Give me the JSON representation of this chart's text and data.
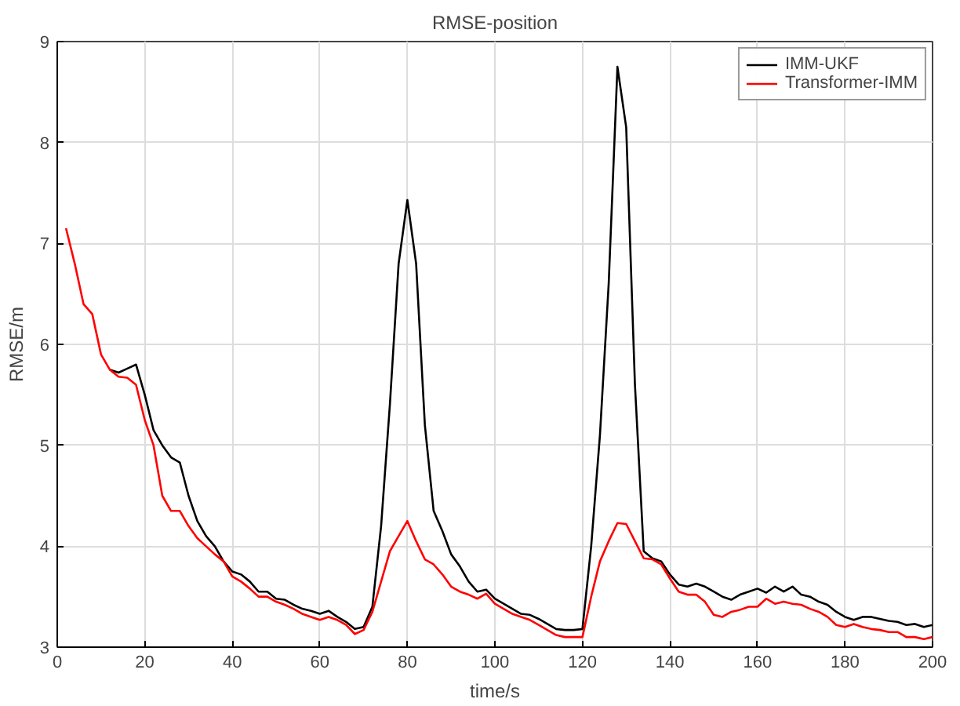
{
  "chart_data": {
    "type": "line",
    "title": "RMSE-position",
    "xlabel": "time/s",
    "ylabel": "RMSE/m",
    "x": [
      2,
      4,
      6,
      8,
      10,
      12,
      14,
      16,
      18,
      20,
      22,
      24,
      26,
      28,
      30,
      32,
      34,
      36,
      38,
      40,
      42,
      44,
      46,
      48,
      50,
      52,
      54,
      56,
      58,
      60,
      62,
      64,
      66,
      68,
      70,
      72,
      74,
      76,
      78,
      80,
      82,
      84,
      86,
      88,
      90,
      92,
      94,
      96,
      98,
      100,
      102,
      104,
      106,
      108,
      110,
      112,
      114,
      116,
      118,
      120,
      122,
      124,
      126,
      128,
      130,
      132,
      134,
      136,
      138,
      140,
      142,
      144,
      146,
      148,
      150,
      152,
      154,
      156,
      158,
      160,
      162,
      164,
      166,
      168,
      170,
      172,
      174,
      176,
      178,
      180,
      182,
      184,
      186,
      188,
      190,
      192,
      194,
      196,
      198,
      200
    ],
    "series": [
      {
        "name": "IMM-UKF",
        "color": "#000000",
        "values": [
          null,
          null,
          null,
          null,
          null,
          5.75,
          5.72,
          5.76,
          5.8,
          5.5,
          5.15,
          5.0,
          4.88,
          4.83,
          4.5,
          4.25,
          4.1,
          4.0,
          3.85,
          3.75,
          3.72,
          3.65,
          3.55,
          3.55,
          3.48,
          3.47,
          3.42,
          3.38,
          3.36,
          3.33,
          3.36,
          3.3,
          3.25,
          3.18,
          3.2,
          3.4,
          4.2,
          5.4,
          6.8,
          7.43,
          6.8,
          5.2,
          4.35,
          4.15,
          3.92,
          3.8,
          3.65,
          3.55,
          3.57,
          3.48,
          3.43,
          3.38,
          3.33,
          3.32,
          3.28,
          3.23,
          3.18,
          3.17,
          3.17,
          3.18,
          4.0,
          5.1,
          6.6,
          8.75,
          8.15,
          5.6,
          3.95,
          3.88,
          3.85,
          3.72,
          3.62,
          3.6,
          3.63,
          3.6,
          3.55,
          3.5,
          3.47,
          3.52,
          3.55,
          3.58,
          3.54,
          3.6,
          3.55,
          3.6,
          3.52,
          3.5,
          3.45,
          3.42,
          3.35,
          3.3,
          3.27,
          3.3,
          3.3,
          3.28,
          3.26,
          3.25,
          3.22,
          3.23,
          3.2,
          3.22
        ]
      },
      {
        "name": "Transformer-IMM",
        "color": "#ff0000",
        "values": [
          7.15,
          6.8,
          6.4,
          6.3,
          5.9,
          5.75,
          5.68,
          5.67,
          5.6,
          5.25,
          5.0,
          4.5,
          4.35,
          4.35,
          4.2,
          4.08,
          4.0,
          3.92,
          3.85,
          3.7,
          3.65,
          3.58,
          3.5,
          3.5,
          3.45,
          3.42,
          3.38,
          3.33,
          3.3,
          3.27,
          3.3,
          3.27,
          3.22,
          3.13,
          3.17,
          3.35,
          3.65,
          3.95,
          4.1,
          4.25,
          4.05,
          3.87,
          3.82,
          3.72,
          3.6,
          3.55,
          3.52,
          3.48,
          3.53,
          3.43,
          3.38,
          3.33,
          3.3,
          3.27,
          3.22,
          3.17,
          3.12,
          3.1,
          3.1,
          3.1,
          3.5,
          3.85,
          4.05,
          4.23,
          4.22,
          4.05,
          3.88,
          3.87,
          3.82,
          3.68,
          3.55,
          3.52,
          3.52,
          3.45,
          3.32,
          3.3,
          3.35,
          3.37,
          3.4,
          3.4,
          3.48,
          3.43,
          3.45,
          3.43,
          3.42,
          3.38,
          3.35,
          3.3,
          3.22,
          3.2,
          3.23,
          3.2,
          3.18,
          3.17,
          3.15,
          3.15,
          3.1,
          3.1,
          3.08,
          3.1
        ]
      }
    ],
    "xlim": [
      0,
      200
    ],
    "xticks": [
      0,
      20,
      40,
      60,
      80,
      100,
      120,
      140,
      160,
      180,
      200
    ],
    "ylim": [
      3,
      9
    ],
    "yticks": [
      3,
      4,
      5,
      6,
      7,
      8,
      9
    ],
    "grid": true,
    "legend": "top right",
    "marker": "none",
    "line_style": "solid"
  }
}
